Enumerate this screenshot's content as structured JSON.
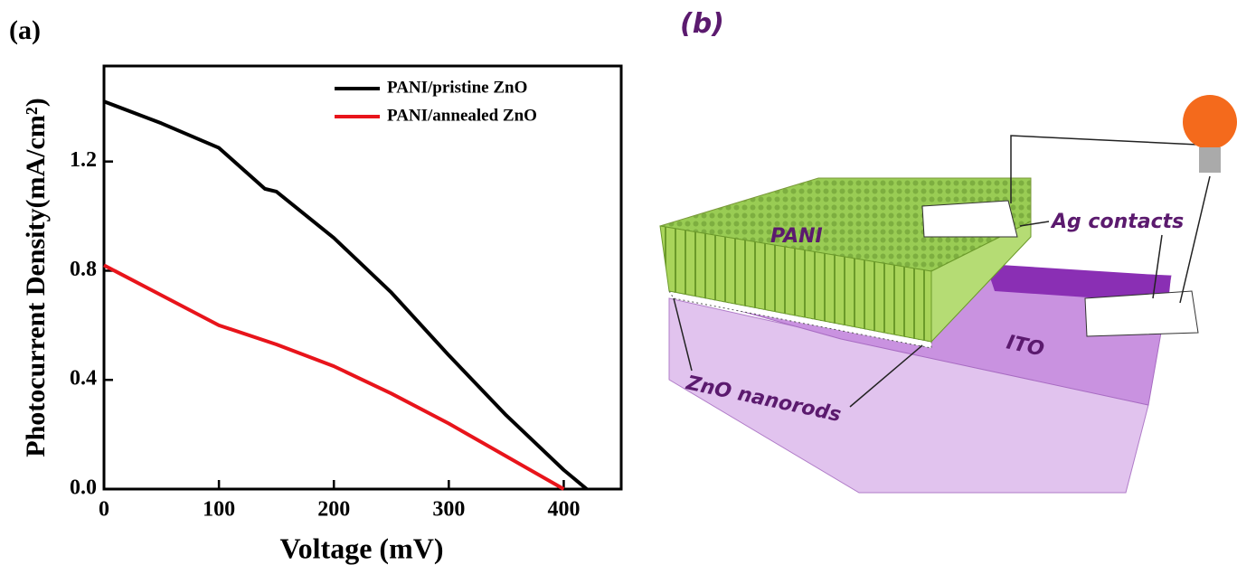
{
  "chart_data": {
    "type": "line",
    "panel_label": "(a)",
    "xlabel": "Voltage (mV)",
    "ylabel": "Photocurrent Density(mA/cm²)",
    "xlim": [
      0,
      450
    ],
    "xticks": [
      0,
      100,
      200,
      300,
      400
    ],
    "ylim": [
      0,
      1.55
    ],
    "yticks": [
      {
        "value": 0,
        "label": "0.0"
      },
      0.4,
      0.8,
      1.2
    ],
    "legend": "upper right",
    "series": [
      {
        "name": "PANI/pristine ZnO",
        "color": "#000000",
        "x": [
          0,
          50,
          100,
          140,
          150,
          200,
          250,
          300,
          350,
          400,
          420
        ],
        "values": [
          1.42,
          1.34,
          1.25,
          1.1,
          1.09,
          0.92,
          0.72,
          0.49,
          0.27,
          0.07,
          0
        ]
      },
      {
        "name": "PANI/annealed ZnO",
        "color": "#e8141b",
        "x": [
          0,
          50,
          100,
          150,
          200,
          250,
          300,
          350,
          400
        ],
        "values": [
          0.82,
          0.71,
          0.6,
          0.53,
          0.45,
          0.35,
          0.24,
          0.12,
          0
        ]
      }
    ]
  },
  "diagram": {
    "panel_label": "(b)",
    "pani": "PANI",
    "ag": "Ag contacts",
    "ito": "ITO",
    "zno": "ZnO nanorods"
  }
}
